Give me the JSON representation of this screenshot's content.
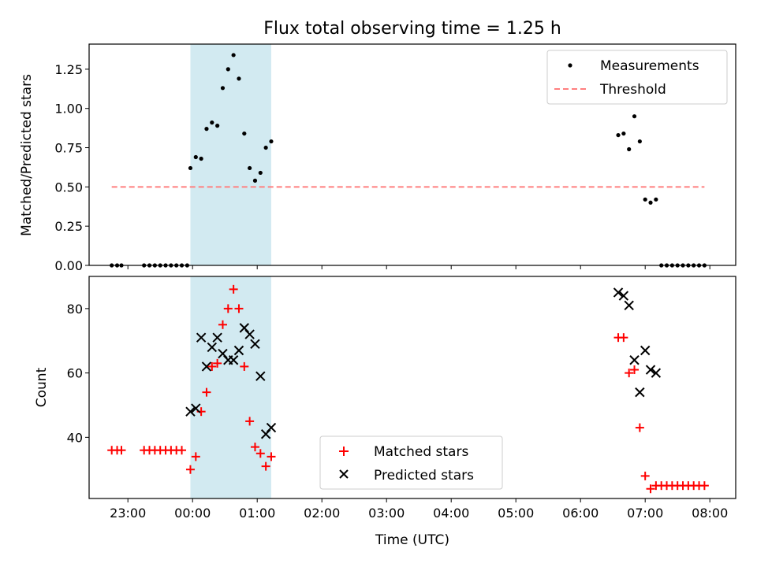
{
  "chart_data": [
    {
      "type": "scatter",
      "title": "Flux total observing time = 1.25 h",
      "ylabel": "Matched/Predicted stars",
      "xlabel": "",
      "xlim": [
        "22:24",
        "08:24"
      ],
      "ylim": [
        0.0,
        1.41
      ],
      "yticks": [
        "0.00",
        "0.25",
        "0.50",
        "0.75",
        "1.00",
        "1.25"
      ],
      "grid": false,
      "legend_position": "top-right",
      "shaded_interval": {
        "start": "23:58",
        "end": "01:13",
        "color": "#add8e6"
      },
      "series": [
        {
          "name": "Measurements",
          "marker": "dot",
          "color": "#000000",
          "points": [
            [
              "22:45",
              0.0
            ],
            [
              "22:50",
              0.0
            ],
            [
              "22:54",
              0.0
            ],
            [
              "23:15",
              0.0
            ],
            [
              "23:20",
              0.0
            ],
            [
              "23:25",
              0.0
            ],
            [
              "23:30",
              0.0
            ],
            [
              "23:35",
              0.0
            ],
            [
              "23:40",
              0.0
            ],
            [
              "23:45",
              0.0
            ],
            [
              "23:50",
              0.0
            ],
            [
              "23:55",
              0.0
            ],
            [
              "23:58",
              0.62
            ],
            [
              "00:03",
              0.69
            ],
            [
              "00:08",
              0.68
            ],
            [
              "00:13",
              0.87
            ],
            [
              "00:18",
              0.91
            ],
            [
              "00:23",
              0.89
            ],
            [
              "00:28",
              1.13
            ],
            [
              "00:33",
              1.25
            ],
            [
              "00:38",
              1.34
            ],
            [
              "00:43",
              1.19
            ],
            [
              "00:48",
              0.84
            ],
            [
              "00:53",
              0.62
            ],
            [
              "00:58",
              0.54
            ],
            [
              "01:03",
              0.59
            ],
            [
              "01:08",
              0.75
            ],
            [
              "01:13",
              0.79
            ],
            [
              "06:35",
              0.83
            ],
            [
              "06:40",
              0.84
            ],
            [
              "06:45",
              0.74
            ],
            [
              "06:50",
              0.95
            ],
            [
              "06:55",
              0.79
            ],
            [
              "07:00",
              0.42
            ],
            [
              "07:05",
              0.4
            ],
            [
              "07:10",
              0.42
            ],
            [
              "07:15",
              0.0
            ],
            [
              "07:20",
              0.0
            ],
            [
              "07:25",
              0.0
            ],
            [
              "07:30",
              0.0
            ],
            [
              "07:35",
              0.0
            ],
            [
              "07:40",
              0.0
            ],
            [
              "07:45",
              0.0
            ],
            [
              "07:50",
              0.0
            ],
            [
              "07:55",
              0.0
            ]
          ]
        },
        {
          "name": "Threshold",
          "marker": "dashed-line",
          "color": "#ff7f7f",
          "points": [
            [
              "22:45",
              0.5
            ],
            [
              "07:55",
              0.5
            ]
          ]
        }
      ]
    },
    {
      "type": "scatter",
      "title": "",
      "ylabel": "Count",
      "xlabel": "Time (UTC)",
      "xlim": [
        "22:24",
        "08:24"
      ],
      "ylim": [
        21,
        90
      ],
      "yticks": [
        "40",
        "60",
        "80"
      ],
      "xticks": [
        "23:00",
        "00:00",
        "01:00",
        "02:00",
        "03:00",
        "04:00",
        "05:00",
        "06:00",
        "07:00",
        "08:00"
      ],
      "grid": false,
      "legend_position": "lower-center",
      "shaded_interval": {
        "start": "23:58",
        "end": "01:13",
        "color": "#add8e6"
      },
      "series": [
        {
          "name": "Matched stars",
          "marker": "plus",
          "color": "#ff0000",
          "points": [
            [
              "22:45",
              36
            ],
            [
              "22:50",
              36
            ],
            [
              "22:54",
              36
            ],
            [
              "23:15",
              36
            ],
            [
              "23:20",
              36
            ],
            [
              "23:25",
              36
            ],
            [
              "23:30",
              36
            ],
            [
              "23:35",
              36
            ],
            [
              "23:40",
              36
            ],
            [
              "23:45",
              36
            ],
            [
              "23:50",
              36
            ],
            [
              "23:58",
              30
            ],
            [
              "00:03",
              34
            ],
            [
              "00:08",
              48
            ],
            [
              "00:13",
              54
            ],
            [
              "00:18",
              62
            ],
            [
              "00:23",
              63
            ],
            [
              "00:28",
              75
            ],
            [
              "00:33",
              80
            ],
            [
              "00:38",
              86
            ],
            [
              "00:43",
              80
            ],
            [
              "00:48",
              62
            ],
            [
              "00:53",
              45
            ],
            [
              "00:58",
              37
            ],
            [
              "01:03",
              35
            ],
            [
              "01:08",
              31
            ],
            [
              "01:13",
              34
            ],
            [
              "06:35",
              71
            ],
            [
              "06:40",
              71
            ],
            [
              "06:45",
              60
            ],
            [
              "06:50",
              61
            ],
            [
              "06:55",
              43
            ],
            [
              "07:00",
              28
            ],
            [
              "07:05",
              24
            ],
            [
              "07:10",
              25
            ],
            [
              "07:15",
              25
            ],
            [
              "07:20",
              25
            ],
            [
              "07:25",
              25
            ],
            [
              "07:30",
              25
            ],
            [
              "07:35",
              25
            ],
            [
              "07:40",
              25
            ],
            [
              "07:45",
              25
            ],
            [
              "07:50",
              25
            ],
            [
              "07:55",
              25
            ]
          ]
        },
        {
          "name": "Predicted stars",
          "marker": "x",
          "color": "#000000",
          "points": [
            [
              "23:58",
              48
            ],
            [
              "00:03",
              49
            ],
            [
              "00:08",
              71
            ],
            [
              "00:13",
              62
            ],
            [
              "00:18",
              68
            ],
            [
              "00:23",
              71
            ],
            [
              "00:28",
              66
            ],
            [
              "00:33",
              64
            ],
            [
              "00:38",
              64
            ],
            [
              "00:43",
              67
            ],
            [
              "00:48",
              74
            ],
            [
              "00:53",
              72
            ],
            [
              "00:58",
              69
            ],
            [
              "01:03",
              59
            ],
            [
              "01:08",
              41
            ],
            [
              "01:13",
              43
            ],
            [
              "06:35",
              85
            ],
            [
              "06:40",
              84
            ],
            [
              "06:45",
              81
            ],
            [
              "06:50",
              64
            ],
            [
              "06:55",
              54
            ],
            [
              "07:00",
              67
            ],
            [
              "07:05",
              61
            ],
            [
              "07:10",
              60
            ]
          ]
        }
      ]
    }
  ]
}
